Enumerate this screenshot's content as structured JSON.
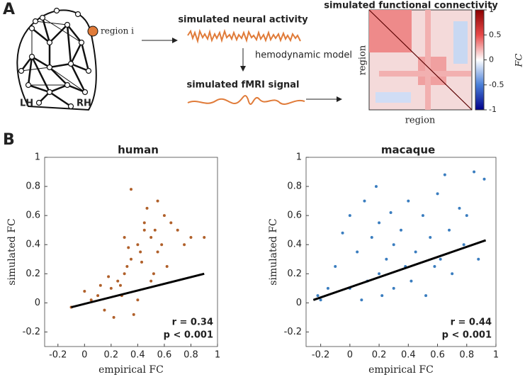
{
  "panel_labels": [
    "A",
    "B"
  ],
  "panel_a": {
    "region_label": "region i",
    "hemispheres": [
      "LH",
      "RH"
    ],
    "neural_title": "simulated neural activity",
    "model_label": "hemodynamic model",
    "fmri_title": "simulated fMRI signal",
    "fc_title": "simulated functional connectivity",
    "matrix_xlabel": "region",
    "matrix_ylabel": "region",
    "colorbar": {
      "label": "FC",
      "lim": [
        -1,
        1
      ],
      "ticks": [
        -1,
        -0.5,
        0,
        0.5,
        1
      ]
    }
  },
  "chart_data": [
    {
      "type": "scatter",
      "title": "human",
      "xlabel": "empirical FC",
      "ylabel": "simulated FC",
      "color": "#b0602a",
      "xlim": [
        -0.3,
        1
      ],
      "ylim": [
        -0.3,
        1
      ],
      "xticks": [
        -0.2,
        0,
        0.2,
        0.4,
        0.6,
        0.8,
        1
      ],
      "yticks": [
        -0.2,
        0,
        0.2,
        0.4,
        0.6,
        0.8,
        1
      ],
      "x": [
        -0.1,
        0,
        0.05,
        0.1,
        0.12,
        0.15,
        0.18,
        0.2,
        0.22,
        0.25,
        0.27,
        0.28,
        0.3,
        0.3,
        0.32,
        0.33,
        0.35,
        0.35,
        0.37,
        0.4,
        0.4,
        0.42,
        0.43,
        0.45,
        0.45,
        0.47,
        0.5,
        0.5,
        0.52,
        0.53,
        0.55,
        0.55,
        0.58,
        0.6,
        0.62,
        0.65,
        0.7,
        0.75,
        0.8,
        0.9
      ],
      "values": [
        -0.03,
        0.08,
        0.02,
        0.05,
        0.12,
        -0.05,
        0.18,
        0.1,
        -0.1,
        0.15,
        0.12,
        0.05,
        0.2,
        0.45,
        0.25,
        0.38,
        0.3,
        0.78,
        -0.08,
        0.4,
        0.02,
        0.35,
        0.28,
        0.5,
        0.55,
        0.65,
        0.45,
        0.15,
        0.2,
        0.5,
        0.35,
        0.7,
        0.4,
        0.6,
        0.25,
        0.55,
        0.5,
        0.4,
        0.45,
        0.45
      ],
      "fit": {
        "x": [
          -0.1,
          0.9
        ],
        "y": [
          -0.03,
          0.2
        ]
      },
      "annotations": [
        "r = 0.34",
        "p < 0.001"
      ]
    },
    {
      "type": "scatter",
      "title": "macaque",
      "xlabel": "empirical FC",
      "ylabel": "simulated FC",
      "color": "#3a7dbf",
      "xlim": [
        -0.3,
        1
      ],
      "ylim": [
        -0.3,
        1
      ],
      "xticks": [
        -0.2,
        0,
        0.2,
        0.4,
        0.6,
        0.8,
        1
      ],
      "yticks": [
        -0.2,
        0,
        0.2,
        0.4,
        0.6,
        0.8,
        1
      ],
      "x": [
        -0.22,
        -0.2,
        -0.15,
        -0.1,
        -0.05,
        0,
        0,
        0.05,
        0.08,
        0.1,
        0.12,
        0.15,
        0.18,
        0.2,
        0.2,
        0.22,
        0.25,
        0.28,
        0.3,
        0.3,
        0.35,
        0.38,
        0.4,
        0.42,
        0.45,
        0.5,
        0.52,
        0.55,
        0.58,
        0.6,
        0.62,
        0.65,
        0.68,
        0.7,
        0.75,
        0.78,
        0.8,
        0.85,
        0.88,
        0.92
      ],
      "values": [
        0.05,
        0.02,
        0.1,
        0.25,
        0.48,
        0.6,
        0.1,
        0.35,
        0.02,
        0.7,
        0.15,
        0.45,
        0.8,
        0.2,
        0.55,
        0.05,
        0.3,
        0.62,
        0.1,
        0.4,
        0.5,
        0.25,
        0.7,
        0.15,
        0.35,
        0.6,
        0.05,
        0.45,
        0.25,
        0.75,
        0.3,
        0.88,
        0.5,
        0.2,
        0.65,
        0.4,
        0.6,
        0.9,
        0.3,
        0.85
      ],
      "fit": {
        "x": [
          -0.25,
          0.93
        ],
        "y": [
          0.02,
          0.43
        ]
      },
      "annotations": [
        "r = 0.44",
        "p < 0.001"
      ]
    }
  ]
}
